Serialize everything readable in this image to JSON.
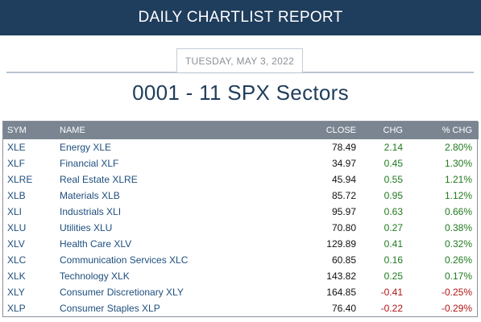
{
  "banner": {
    "title": "DAILY CHARTLIST REPORT"
  },
  "report": {
    "date": "TUESDAY, MAY 3, 2022",
    "list_title": "0001 - 11 SPX Sectors"
  },
  "colors": {
    "header_bg": "#1f3d5c",
    "table_header_bg": "#7a8591",
    "positive": "#1f7a1f",
    "negative": "#b01515",
    "link": "#1e4e7e"
  },
  "table": {
    "columns": {
      "sym": "SYM",
      "name": "NAME",
      "close": "CLOSE",
      "chg": "CHG",
      "pct": "% CHG"
    },
    "rows": [
      {
        "sym": "XLE",
        "name": "Energy XLE",
        "close": "78.49",
        "chg": "2.14",
        "pct": "2.80%",
        "dir": "pos"
      },
      {
        "sym": "XLF",
        "name": "Financial XLF",
        "close": "34.97",
        "chg": "0.45",
        "pct": "1.30%",
        "dir": "pos"
      },
      {
        "sym": "XLRE",
        "name": "Real Estate XLRE",
        "close": "45.94",
        "chg": "0.55",
        "pct": "1.21%",
        "dir": "pos"
      },
      {
        "sym": "XLB",
        "name": "Materials XLB",
        "close": "85.72",
        "chg": "0.95",
        "pct": "1.12%",
        "dir": "pos"
      },
      {
        "sym": "XLI",
        "name": "Industrials XLI",
        "close": "95.97",
        "chg": "0.63",
        "pct": "0.66%",
        "dir": "pos"
      },
      {
        "sym": "XLU",
        "name": "Utilities XLU",
        "close": "70.80",
        "chg": "0.27",
        "pct": "0.38%",
        "dir": "pos"
      },
      {
        "sym": "XLV",
        "name": "Health Care XLV",
        "close": "129.89",
        "chg": "0.41",
        "pct": "0.32%",
        "dir": "pos"
      },
      {
        "sym": "XLC",
        "name": "Communication Services XLC",
        "close": "60.85",
        "chg": "0.16",
        "pct": "0.26%",
        "dir": "pos"
      },
      {
        "sym": "XLK",
        "name": "Technology XLK",
        "close": "143.82",
        "chg": "0.25",
        "pct": "0.17%",
        "dir": "pos"
      },
      {
        "sym": "XLY",
        "name": "Consumer Discretionary XLY",
        "close": "164.85",
        "chg": "-0.41",
        "pct": "-0.25%",
        "dir": "neg"
      },
      {
        "sym": "XLP",
        "name": "Consumer Staples XLP",
        "close": "76.40",
        "chg": "-0.22",
        "pct": "-0.29%",
        "dir": "neg"
      }
    ]
  }
}
